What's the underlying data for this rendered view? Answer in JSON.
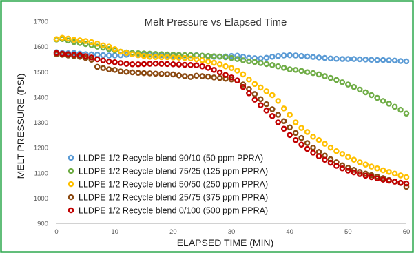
{
  "chart_data": {
    "type": "scatter",
    "title": "Melt Pressure vs Elapsed Time",
    "xlabel": "ELAPSED TIME (MIN)",
    "ylabel": "MELT PRESSURE  (PSI)",
    "xlim": [
      0,
      60
    ],
    "ylim": [
      900,
      1700
    ],
    "xticks": [
      0,
      10,
      20,
      30,
      40,
      50,
      60
    ],
    "yticks": [
      900,
      1000,
      1100,
      1200,
      1300,
      1400,
      1500,
      1600,
      1700
    ],
    "grid": false,
    "legend_position": "bottom-left",
    "x": [
      0,
      1,
      2,
      3,
      4,
      5,
      6,
      7,
      8,
      9,
      10,
      11,
      12,
      13,
      14,
      15,
      16,
      17,
      18,
      19,
      20,
      21,
      22,
      23,
      24,
      25,
      26,
      27,
      28,
      29,
      30,
      31,
      32,
      33,
      34,
      35,
      36,
      37,
      38,
      39,
      40,
      41,
      42,
      43,
      44,
      45,
      46,
      47,
      48,
      49,
      50,
      51,
      52,
      53,
      54,
      55,
      56,
      57,
      58,
      59,
      60
    ],
    "series": [
      {
        "name": "LLDPE 1/2 Recycle blend 90/10 (50 ppm PPRA)",
        "color": "#5b9bd5",
        "values": [
          1578,
          1575,
          1574,
          1575,
          1572,
          1570,
          1569,
          1568,
          1566,
          1565,
          1565,
          1566,
          1568,
          1570,
          1571,
          1569,
          1568,
          1567,
          1566,
          1565,
          1564,
          1564,
          1565,
          1566,
          1566,
          1564,
          1562,
          1560,
          1560,
          1561,
          1563,
          1564,
          1560,
          1556,
          1554,
          1553,
          1556,
          1560,
          1563,
          1565,
          1566,
          1565,
          1563,
          1561,
          1559,
          1557,
          1555,
          1553,
          1552,
          1551,
          1551,
          1551,
          1550,
          1549,
          1548,
          1547,
          1547,
          1546,
          1545,
          1543,
          1542
        ]
      },
      {
        "name": "LLDPE 1/2 Recycle blend 75/25 (125 ppm PPRA)",
        "color": "#70ad47",
        "values": [
          1628,
          1630,
          1624,
          1618,
          1614,
          1610,
          1606,
          1600,
          1596,
          1590,
          1585,
          1580,
          1577,
          1575,
          1574,
          1573,
          1572,
          1571,
          1570,
          1569,
          1568,
          1567,
          1566,
          1566,
          1565,
          1564,
          1563,
          1562,
          1561,
          1558,
          1555,
          1551,
          1546,
          1542,
          1539,
          1535,
          1531,
          1527,
          1522,
          1516,
          1510,
          1508,
          1504,
          1499,
          1495,
          1490,
          1483,
          1476,
          1468,
          1459,
          1450,
          1440,
          1430,
          1419,
          1408,
          1397,
          1385,
          1374,
          1362,
          1350,
          1335
        ]
      },
      {
        "name": "LLDPE 1/2 Recycle blend  50/50 (250 ppm PPRA)",
        "color": "#ffc000",
        "values": [
          1630,
          1635,
          1632,
          1627,
          1625,
          1622,
          1618,
          1612,
          1605,
          1600,
          1590,
          1580,
          1575,
          1570,
          1566,
          1563,
          1560,
          1559,
          1558,
          1558,
          1557,
          1556,
          1555,
          1553,
          1550,
          1546,
          1541,
          1536,
          1530,
          1522,
          1515,
          1505,
          1490,
          1470,
          1452,
          1438,
          1423,
          1408,
          1385,
          1355,
          1330,
          1300,
          1278,
          1262,
          1243,
          1230,
          1215,
          1200,
          1186,
          1175,
          1163,
          1152,
          1142,
          1133,
          1125,
          1118,
          1110,
          1104,
          1097,
          1090,
          1083
        ]
      },
      {
        "name": "LLDPE 1/2 Recycle blend 25/75 (375 ppm PPRA)",
        "color": "#8b4a12",
        "values": [
          1570,
          1568,
          1565,
          1563,
          1560,
          1555,
          1548,
          1520,
          1515,
          1510,
          1508,
          1502,
          1500,
          1498,
          1496,
          1495,
          1494,
          1493,
          1492,
          1491,
          1490,
          1486,
          1483,
          1480,
          1485,
          1483,
          1481,
          1478,
          1476,
          1473,
          1470,
          1466,
          1450,
          1432,
          1412,
          1392,
          1372,
          1352,
          1330,
          1305,
          1280,
          1258,
          1238,
          1218,
          1200,
          1183,
          1168,
          1154,
          1142,
          1130,
          1120,
          1112,
          1104,
          1097,
          1091,
          1085,
          1079,
          1072,
          1066,
          1060,
          1045
        ]
      },
      {
        "name": "LLDPE 1/2 Recycle blend 0/100 (500 ppm PPRA)",
        "color": "#c00000",
        "values": [
          1575,
          1572,
          1570,
          1568,
          1566,
          1562,
          1557,
          1550,
          1545,
          1541,
          1538,
          1535,
          1532,
          1530,
          1530,
          1531,
          1532,
          1533,
          1532,
          1531,
          1530,
          1529,
          1528,
          1527,
          1526,
          1522,
          1516,
          1508,
          1498,
          1488,
          1478,
          1466,
          1440,
          1415,
          1390,
          1368,
          1347,
          1325,
          1300,
          1275,
          1250,
          1230,
          1212,
          1195,
          1180,
          1166,
          1152,
          1140,
          1128,
          1118,
          1109,
          1102,
          1095,
          1089,
          1083,
          1078,
          1073,
          1069,
          1065,
          1061,
          1058
        ]
      }
    ]
  }
}
